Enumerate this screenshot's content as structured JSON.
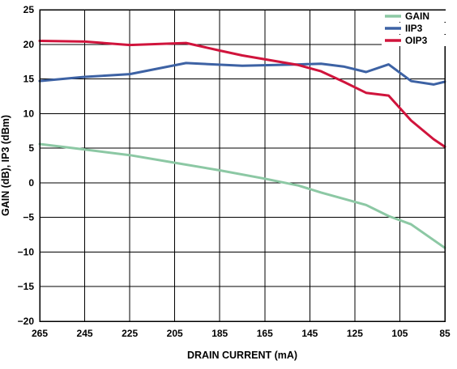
{
  "chart_data": {
    "type": "line",
    "title": "",
    "xlabel": "DRAIN CURRENT (mA)",
    "ylabel": "GAIN (dB), IP3 (dBm)",
    "xlim": [
      265,
      85
    ],
    "ylim": [
      -20,
      25
    ],
    "x_reversed": true,
    "x_ticks": [
      265,
      245,
      225,
      205,
      185,
      165,
      145,
      125,
      105,
      85
    ],
    "y_ticks": [
      25,
      20,
      15,
      10,
      5,
      0,
      -5,
      -10,
      -15,
      -20
    ],
    "x_tick_labels": [
      "265",
      "245",
      "225",
      "205",
      "185",
      "165",
      "145",
      "125",
      "105",
      "85"
    ],
    "y_tick_labels": [
      "25",
      "20",
      "15",
      "10",
      "5",
      "0",
      "−5",
      "−10",
      "−15",
      "−20"
    ],
    "grid": true,
    "legend_position": "top-right",
    "series": [
      {
        "name": "GAIN",
        "color": "#8cc8a4",
        "x": [
          265,
          245,
          225,
          205,
          185,
          165,
          150,
          140,
          120,
          110,
          100,
          85
        ],
        "y": [
          5.6,
          4.8,
          4.0,
          2.9,
          1.8,
          0.6,
          -0.4,
          -1.4,
          -3.2,
          -4.8,
          -6.0,
          -9.4
        ]
      },
      {
        "name": "IIP3",
        "color": "#3d62a4",
        "x": [
          265,
          245,
          225,
          200,
          175,
          150,
          140,
          130,
          120,
          110,
          100,
          90,
          85
        ],
        "y": [
          14.7,
          15.3,
          15.7,
          17.3,
          16.9,
          17.1,
          17.2,
          16.8,
          16.0,
          17.1,
          14.7,
          14.2,
          14.6
        ]
      },
      {
        "name": "OIP3",
        "color": "#d0143c",
        "x": [
          265,
          245,
          225,
          200,
          185,
          175,
          150,
          140,
          130,
          120,
          110,
          100,
          90,
          85
        ],
        "y": [
          20.5,
          20.4,
          19.9,
          20.2,
          19.1,
          18.4,
          17.0,
          16.1,
          14.6,
          13.0,
          12.6,
          9.0,
          6.3,
          5.2
        ]
      }
    ]
  }
}
